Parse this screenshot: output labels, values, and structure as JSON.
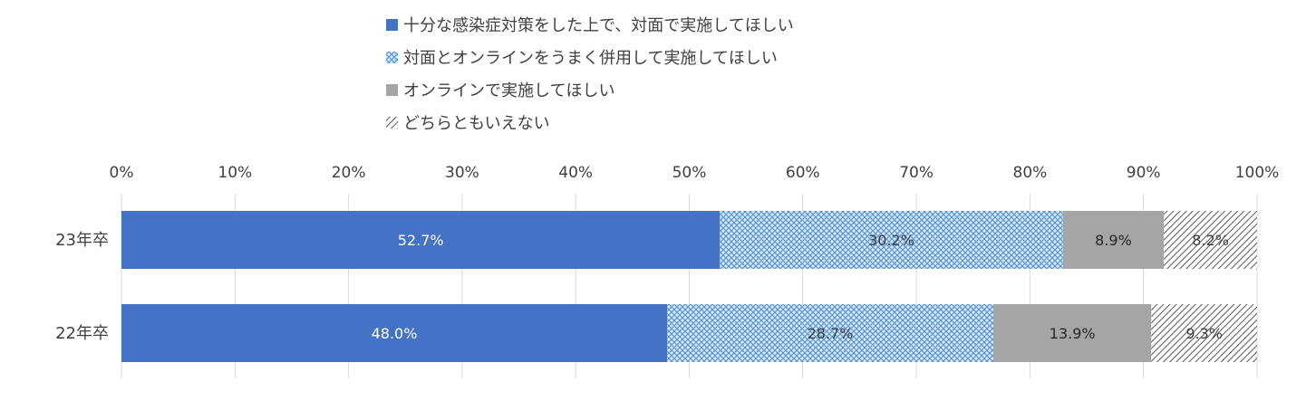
{
  "chart_data": {
    "type": "bar",
    "orientation": "horizontal",
    "stacked": "percent",
    "categories": [
      "23年卒",
      "22年卒"
    ],
    "series": [
      {
        "name": "十分な感染症対策をした上で、対面で実施してほしい",
        "values": [
          52.7,
          48.0
        ],
        "labels": [
          "52.7%",
          "48.0%"
        ],
        "color": "#4472C4",
        "pattern": "solid",
        "label_color": "#ffffff"
      },
      {
        "name": "対面とオンラインをうまく併用して実施してほしい",
        "values": [
          30.2,
          28.7
        ],
        "labels": [
          "30.2%",
          "28.7%"
        ],
        "color": "#5B9BD5",
        "pattern": "crosshatch",
        "label_color": "#404040"
      },
      {
        "name": "オンラインで実施してほしい",
        "values": [
          8.9,
          13.9
        ],
        "labels": [
          "8.9%",
          "13.9%"
        ],
        "color": "#A5A5A5",
        "pattern": "solid",
        "label_color": "#262626"
      },
      {
        "name": "どちらともいえない",
        "values": [
          8.2,
          9.3
        ],
        "labels": [
          "8.2%",
          "9.3%"
        ],
        "color": "#595959",
        "pattern": "diagonal-stripes",
        "label_color": "#404040"
      }
    ],
    "x_axis": {
      "range": [
        0,
        100
      ],
      "position": "top",
      "ticks": [
        0,
        10,
        20,
        30,
        40,
        50,
        60,
        70,
        80,
        90,
        100
      ],
      "tick_labels": [
        "0%",
        "10%",
        "20%",
        "30%",
        "40%",
        "50%",
        "60%",
        "70%",
        "80%",
        "90%",
        "100%"
      ]
    },
    "grid": true,
    "legend": {
      "position": "top"
    },
    "title": "",
    "xlabel": "",
    "ylabel": ""
  }
}
